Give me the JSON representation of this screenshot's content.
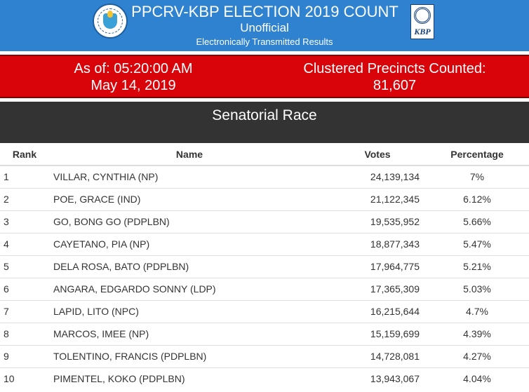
{
  "header": {
    "title": "PPCRV-KBP ELECTION 2019 COUNT",
    "subtitle": "Unofficial",
    "subtitle2": "Electronically Transmitted Results",
    "logo_left": "ppcrv-seal-icon",
    "logo_right_text": "KBP",
    "bg_color": "#2f82cf"
  },
  "status": {
    "as_of_label": "As of: 05:20:00 AM",
    "as_of_date": "May 14, 2019",
    "precincts_label": "Clustered Precincts Counted:",
    "precincts_value": "81,607",
    "bg_color": "#d9030a"
  },
  "section": {
    "title": "Senatorial Race"
  },
  "table": {
    "headers": {
      "rank": "Rank",
      "name": "Name",
      "votes": "Votes",
      "percentage": "Percentage"
    },
    "rows": [
      {
        "rank": "1",
        "name": "VILLAR, CYNTHIA (NP)",
        "votes": "24,139,134",
        "pct": "7%"
      },
      {
        "rank": "2",
        "name": "POE, GRACE (IND)",
        "votes": "21,122,345",
        "pct": "6.12%"
      },
      {
        "rank": "3",
        "name": "GO, BONG GO (PDPLBN)",
        "votes": "19,535,952",
        "pct": "5.66%"
      },
      {
        "rank": "4",
        "name": "CAYETANO, PIA (NP)",
        "votes": "18,877,343",
        "pct": "5.47%"
      },
      {
        "rank": "5",
        "name": "DELA ROSA, BATO (PDPLBN)",
        "votes": "17,964,775",
        "pct": "5.21%"
      },
      {
        "rank": "6",
        "name": "ANGARA, EDGARDO SONNY (LDP)",
        "votes": "17,365,309",
        "pct": "5.03%"
      },
      {
        "rank": "7",
        "name": "LAPID, LITO (NPC)",
        "votes": "16,215,644",
        "pct": "4.7%"
      },
      {
        "rank": "8",
        "name": "MARCOS, IMEE (NP)",
        "votes": "15,159,699",
        "pct": "4.39%"
      },
      {
        "rank": "9",
        "name": "TOLENTINO, FRANCIS (PDPLBN)",
        "votes": "14,728,081",
        "pct": "4.27%"
      },
      {
        "rank": "10",
        "name": "PIMENTEL, KOKO (PDPLBN)",
        "votes": "13,943,067",
        "pct": "4.04%"
      }
    ]
  }
}
